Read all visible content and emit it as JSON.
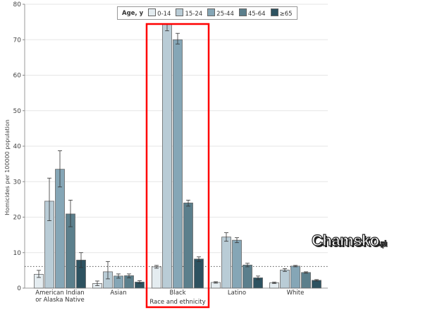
{
  "chart_data": {
    "type": "bar",
    "ylabel": "Homicides per 100000 population",
    "xlabel": "Race and ethnicity",
    "ylim": [
      0,
      80
    ],
    "yticks": [
      0,
      10,
      20,
      30,
      40,
      50,
      60,
      70,
      80
    ],
    "grid": true,
    "legend_placement": "top-center",
    "legend_title": "Age, y",
    "reference_line": 6.1,
    "highlighted_category": "Black",
    "highlight_color": "#ff0000",
    "categories": [
      "American Indian\nor Alaska Native",
      "Asian",
      "Black",
      "Latino",
      "White"
    ],
    "series": [
      {
        "name": "0-14",
        "color": "#e4ecf0",
        "values": [
          3.9,
          1.3,
          6.0,
          1.6,
          1.5
        ],
        "ci": [
          [
            3.0,
            5.0
          ],
          [
            0.7,
            2.0
          ],
          [
            5.6,
            6.4
          ],
          [
            1.4,
            1.8
          ],
          [
            1.3,
            1.7
          ]
        ]
      },
      {
        "name": "15-24",
        "color": "#b9ccd6",
        "values": [
          24.5,
          4.6,
          75,
          14.4,
          5.1
        ],
        "ci": [
          [
            19.0,
            31.0
          ],
          [
            2.6,
            7.5
          ],
          [
            72.5,
            77.5
          ],
          [
            13.2,
            15.6
          ],
          [
            4.7,
            5.5
          ]
        ]
      },
      {
        "name": "25-44",
        "color": "#85a6b6",
        "values": [
          33.5,
          3.4,
          70.0,
          13.5,
          6.2
        ],
        "ci": [
          [
            28.5,
            38.7
          ],
          [
            2.8,
            4.0
          ],
          [
            68.8,
            71.8
          ],
          [
            12.8,
            14.2
          ],
          [
            6.0,
            6.4
          ]
        ]
      },
      {
        "name": "45-64",
        "color": "#5b7f8c",
        "values": [
          20.9,
          3.5,
          24.0,
          6.5,
          4.4
        ],
        "ci": [
          [
            17.3,
            24.8
          ],
          [
            2.9,
            4.0
          ],
          [
            23.1,
            24.8
          ],
          [
            6.0,
            7.0
          ],
          [
            4.2,
            4.6
          ]
        ]
      },
      {
        "name": "≥65",
        "color": "#2d5260",
        "values": [
          7.9,
          1.7,
          8.2,
          2.9,
          2.2
        ],
        "ci": [
          [
            5.8,
            10.0
          ],
          [
            1.3,
            2.1
          ],
          [
            7.5,
            8.8
          ],
          [
            2.4,
            3.4
          ],
          [
            2.0,
            2.4
          ]
        ]
      }
    ]
  },
  "watermark": {
    "brand": "Chamsko",
    "suffix": ".pl"
  }
}
